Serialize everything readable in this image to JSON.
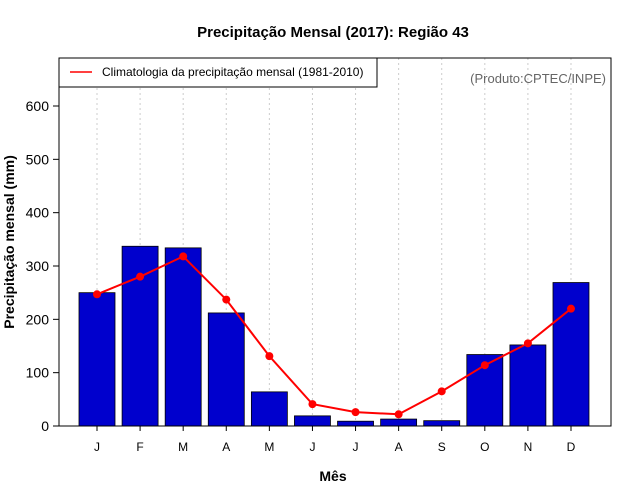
{
  "chart_data": {
    "type": "bar",
    "title": "Precipitação Mensal (2017): Região 43",
    "xlabel": "Mês",
    "ylabel": "Precipitação mensal (mm)",
    "ylim": [
      0,
      690
    ],
    "yticks": [
      0,
      100,
      200,
      300,
      400,
      500,
      600
    ],
    "categories": [
      "J",
      "F",
      "M",
      "A",
      "M",
      "J",
      "J",
      "A",
      "S",
      "O",
      "N",
      "D"
    ],
    "series": [
      {
        "name": "Precipitação mensal (2017)",
        "type": "bar",
        "color": "#0000CD",
        "values": [
          250,
          337,
          334,
          212,
          64,
          19,
          9,
          13,
          10,
          134,
          152,
          269
        ]
      },
      {
        "name": "Climatologia da precipitação mensal (1981-2010)",
        "type": "line",
        "color": "#FF0000",
        "values": [
          247,
          280,
          318,
          237,
          131,
          41,
          26,
          22,
          65,
          114,
          155,
          220
        ]
      }
    ],
    "legend": {
      "position": "top-left",
      "entries": [
        "Climatologia da precipitação mensal (1981-2010)"
      ]
    },
    "grid": "vertical dotted",
    "annotation": "(Produto:CPTEC/INPE)"
  }
}
